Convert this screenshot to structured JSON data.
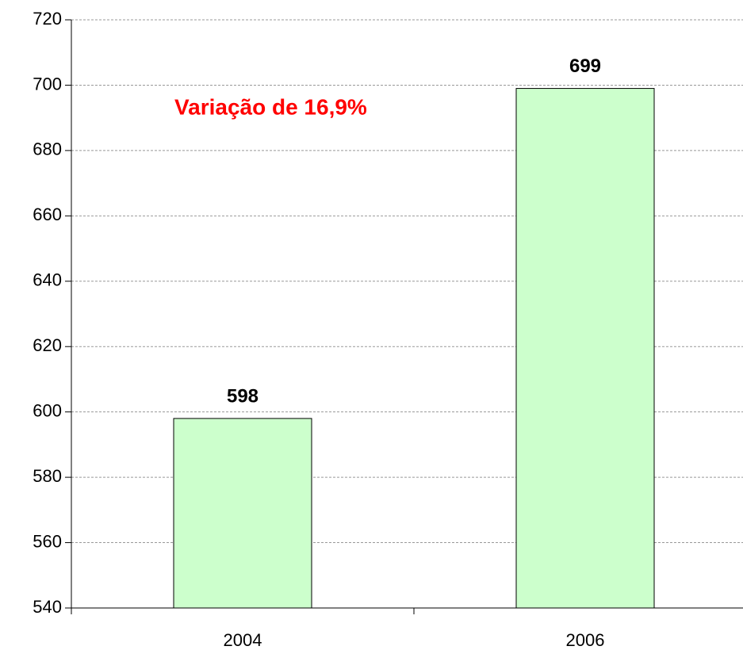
{
  "chart_data": {
    "type": "bar",
    "annotation": "Variação de 16,9%",
    "categories": [
      "2004",
      "2006"
    ],
    "values": [
      598,
      699
    ],
    "color": "#ccffcc",
    "ylim": [
      540,
      720
    ],
    "yticks": [
      540,
      560,
      580,
      600,
      620,
      640,
      660,
      680,
      700,
      720
    ],
    "grid": true
  }
}
